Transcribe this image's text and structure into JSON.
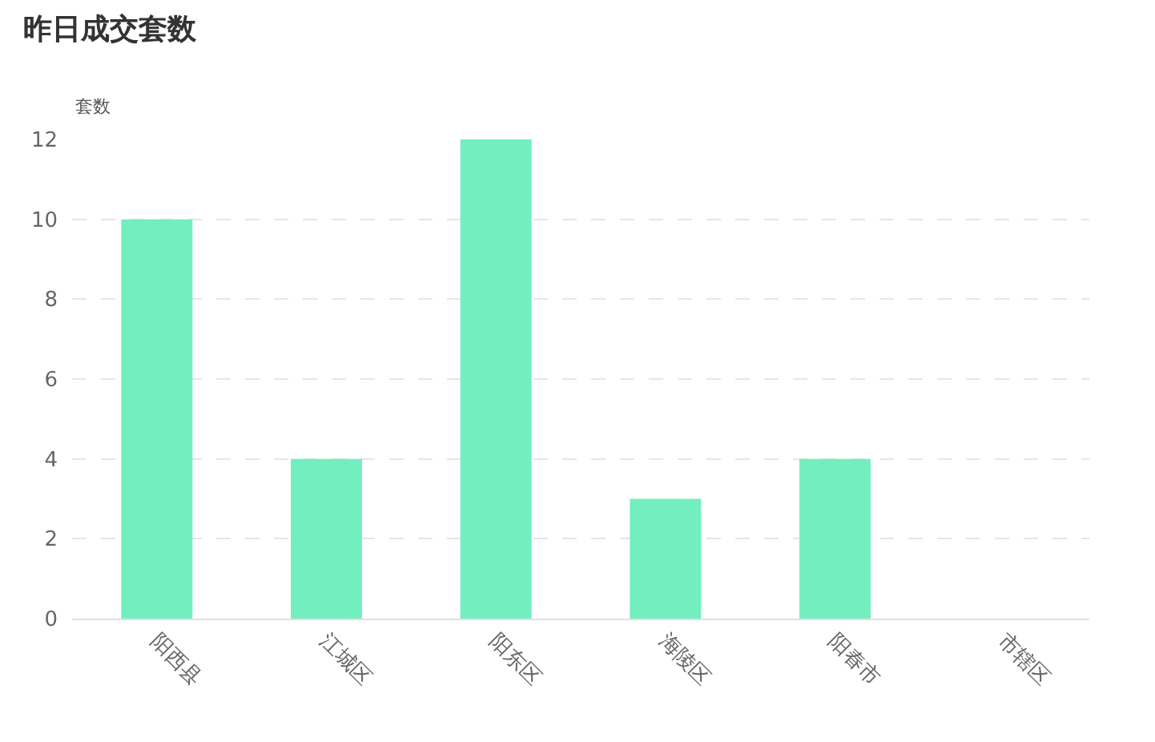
{
  "chart_data": {
    "type": "bar",
    "title": "昨日成交套数",
    "ylabel": "套数",
    "categories": [
      "阳西县",
      "江城区",
      "阳东区",
      "海陵区",
      "阳春市",
      "市辖区"
    ],
    "values": [
      10,
      4,
      12,
      3,
      4,
      0
    ],
    "color": "#73eebf",
    "ylim": [
      0,
      12
    ],
    "yticks": [
      0,
      2,
      4,
      6,
      8,
      10,
      12
    ],
    "grid": "y"
  }
}
